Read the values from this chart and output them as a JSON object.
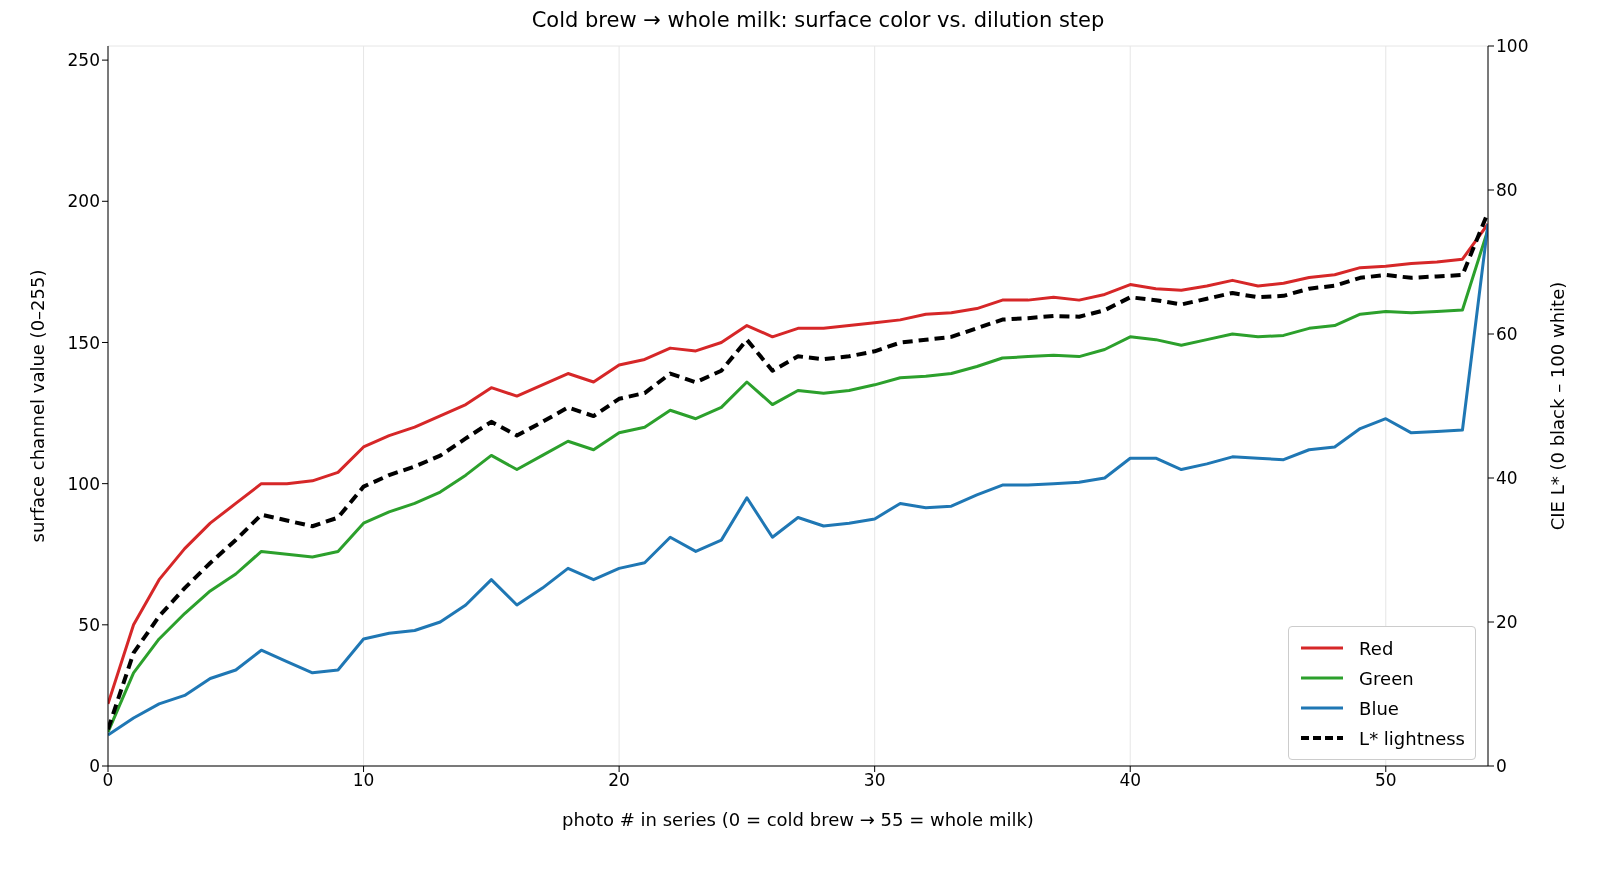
{
  "chart_data": {
    "type": "line",
    "title": "Cold brew → whole milk: surface color vs. dilution step",
    "xlabel": "photo # in series  (0 = cold brew  →  55 = whole milk)",
    "ylabel": "surface channel value (0–255)",
    "y2label": "CIE L*  (0 black – 100 white)",
    "x": [
      0,
      1,
      2,
      3,
      4,
      5,
      6,
      7,
      8,
      9,
      10,
      11,
      12,
      13,
      14,
      15,
      16,
      17,
      18,
      19,
      20,
      21,
      22,
      23,
      24,
      25,
      26,
      27,
      28,
      29,
      30,
      31,
      32,
      33,
      34,
      35,
      36,
      37,
      38,
      39,
      40,
      41,
      42,
      43,
      44,
      45,
      46,
      47,
      48,
      49,
      50,
      51,
      52,
      53,
      54
    ],
    "xlim": [
      0,
      54
    ],
    "xticks": [
      0,
      10,
      20,
      30,
      40,
      50
    ],
    "ylim": [
      0,
      255
    ],
    "yticks": [
      0,
      50,
      100,
      150,
      200,
      250
    ],
    "y2lim": [
      0,
      100
    ],
    "y2ticks": [
      0,
      20,
      40,
      60,
      80,
      100
    ],
    "grid": true,
    "legend": "bottom right",
    "marker": "none",
    "series": [
      {
        "name": "Red",
        "color": "#d62728",
        "values": [
          22,
          50,
          66,
          77,
          86,
          93,
          100,
          100,
          101,
          104,
          113,
          117,
          120,
          124,
          128,
          134,
          131,
          135,
          139,
          136,
          142,
          144,
          148,
          147,
          150,
          156,
          152,
          155,
          155,
          156,
          157,
          158,
          160,
          160.5,
          162,
          165,
          165,
          166,
          165,
          167,
          170.5,
          169,
          168.5,
          170,
          172,
          170,
          171,
          173,
          174,
          176.5,
          177,
          178,
          178.5,
          179.5,
          192
        ]
      },
      {
        "name": "Green",
        "color": "#2ca02c",
        "values": [
          12,
          33,
          45,
          54,
          62,
          68,
          76,
          75,
          74,
          76,
          86,
          90,
          93,
          97,
          103,
          110,
          105,
          110,
          115,
          112,
          118,
          120,
          126,
          123,
          127,
          136,
          128,
          133,
          132,
          133,
          135,
          137.5,
          138,
          139,
          141.5,
          144.5,
          145,
          145.5,
          145,
          147.5,
          152,
          151,
          149,
          151,
          153,
          152,
          152.5,
          155,
          156,
          160,
          161,
          160.5,
          161,
          161.5,
          190
        ]
      },
      {
        "name": "Blue",
        "color": "#1f77b4",
        "values": [
          11,
          17,
          22,
          25,
          31,
          34,
          41,
          37,
          33,
          34,
          45,
          47,
          48,
          51,
          57,
          66,
          57,
          63,
          70,
          66,
          70,
          72,
          81,
          76,
          80,
          95,
          81,
          88,
          85,
          86,
          87.5,
          93,
          91.5,
          92,
          96,
          99.5,
          99.5,
          100,
          100.5,
          102,
          109,
          109,
          105,
          107,
          109.5,
          109,
          108.5,
          112,
          113,
          119.5,
          123,
          118,
          118.5,
          119,
          192
        ]
      },
      {
        "name": "L* lightness",
        "color": "#000000",
        "axis": "y2",
        "line_style": "dashed",
        "values": [
          5.1,
          15.7,
          20.8,
          24.7,
          28.2,
          31.4,
          34.9,
          34.1,
          33.3,
          34.5,
          38.8,
          40.4,
          41.6,
          43.1,
          45.5,
          47.8,
          45.9,
          47.8,
          49.8,
          48.6,
          51,
          51.8,
          54.5,
          53.3,
          54.9,
          59.2,
          54.9,
          56.9,
          56.5,
          56.9,
          57.6,
          58.8,
          59.2,
          59.6,
          60.8,
          62,
          62.2,
          62.5,
          62.4,
          63.3,
          65.1,
          64.7,
          64.1,
          64.9,
          65.7,
          65.1,
          65.3,
          66.3,
          66.7,
          67.8,
          68.2,
          67.8,
          68,
          68.2,
          76.9
        ]
      }
    ]
  }
}
